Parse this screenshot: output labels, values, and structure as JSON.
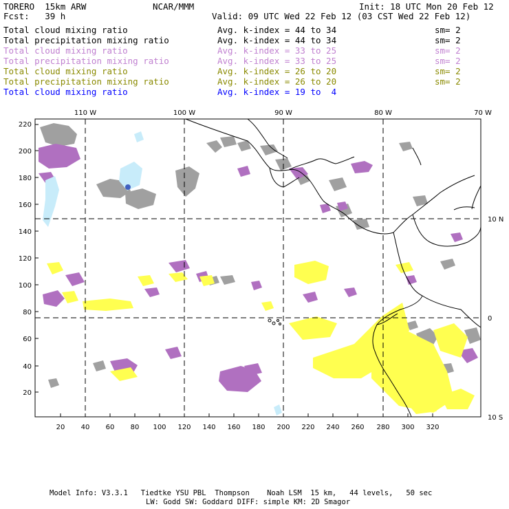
{
  "header": {
    "model": "TORERO  15km ARW",
    "org": "NCAR/MMM",
    "init": "Init: 18 UTC Mon 20 Feb 12",
    "fcst": "Fcst:   39 h",
    "valid": "Valid: 09 UTC Wed 22 Feb 12 (03 CST Wed 22 Feb 12)"
  },
  "legend": [
    {
      "name": "Total cloud mixing ratio",
      "kindex": "Avg. k-index = 44 to 34",
      "sm": "sm= 2",
      "color": "#000000"
    },
    {
      "name": "Total precipitation mixing ratio",
      "kindex": "Avg. k-index = 44 to 34",
      "sm": "sm= 2",
      "color": "#000000"
    },
    {
      "name": "Total cloud mixing ratio",
      "kindex": "Avg. k-index = 33 to 25",
      "sm": "sm= 2",
      "color": "#c080d0"
    },
    {
      "name": "Total precipitation mixing ratio",
      "kindex": "Avg. k-index = 33 to 25",
      "sm": "sm= 2",
      "color": "#c080d0"
    },
    {
      "name": "Total cloud mixing ratio",
      "kindex": "Avg. k-index = 26 to 20",
      "sm": "sm= 2",
      "color": "#8a8a00"
    },
    {
      "name": "Total precipitation mixing ratio",
      "kindex": "Avg. k-index = 26 to 20",
      "sm": "sm= 2",
      "color": "#8a8a00"
    },
    {
      "name": "Total cloud mixing ratio",
      "kindex": "Avg. k-index = 19 to  4",
      "sm": "",
      "color": "#0000ff"
    }
  ],
  "map": {
    "lon_labels": [
      "110 W",
      "100 W",
      "90 W",
      "80 W",
      "70 W"
    ],
    "lat_labels": [
      "10 N",
      "0",
      "10 S"
    ],
    "y_ticks": [
      "220",
      "200",
      "180",
      "160",
      "140",
      "120",
      "100",
      "80",
      "60",
      "40",
      "20"
    ],
    "x_ticks": [
      "20",
      "40",
      "60",
      "80",
      "100",
      "120",
      "140",
      "160",
      "180",
      "200",
      "220",
      "240",
      "260",
      "280",
      "300",
      "320"
    ]
  },
  "footer": {
    "line1": "Model Info: V3.3.1   Tiedtke YSU PBL  Thompson    Noah LSM  15 km,   44 levels,   50 sec",
    "line2": "LW: Godd SW: Goddard DIFF: simple KM: 2D Smagor"
  },
  "colors": {
    "gray": "#a0a0a0",
    "purple": "#b070c0",
    "yellow": "#ffff50",
    "cyan": "#c8ecfa"
  }
}
